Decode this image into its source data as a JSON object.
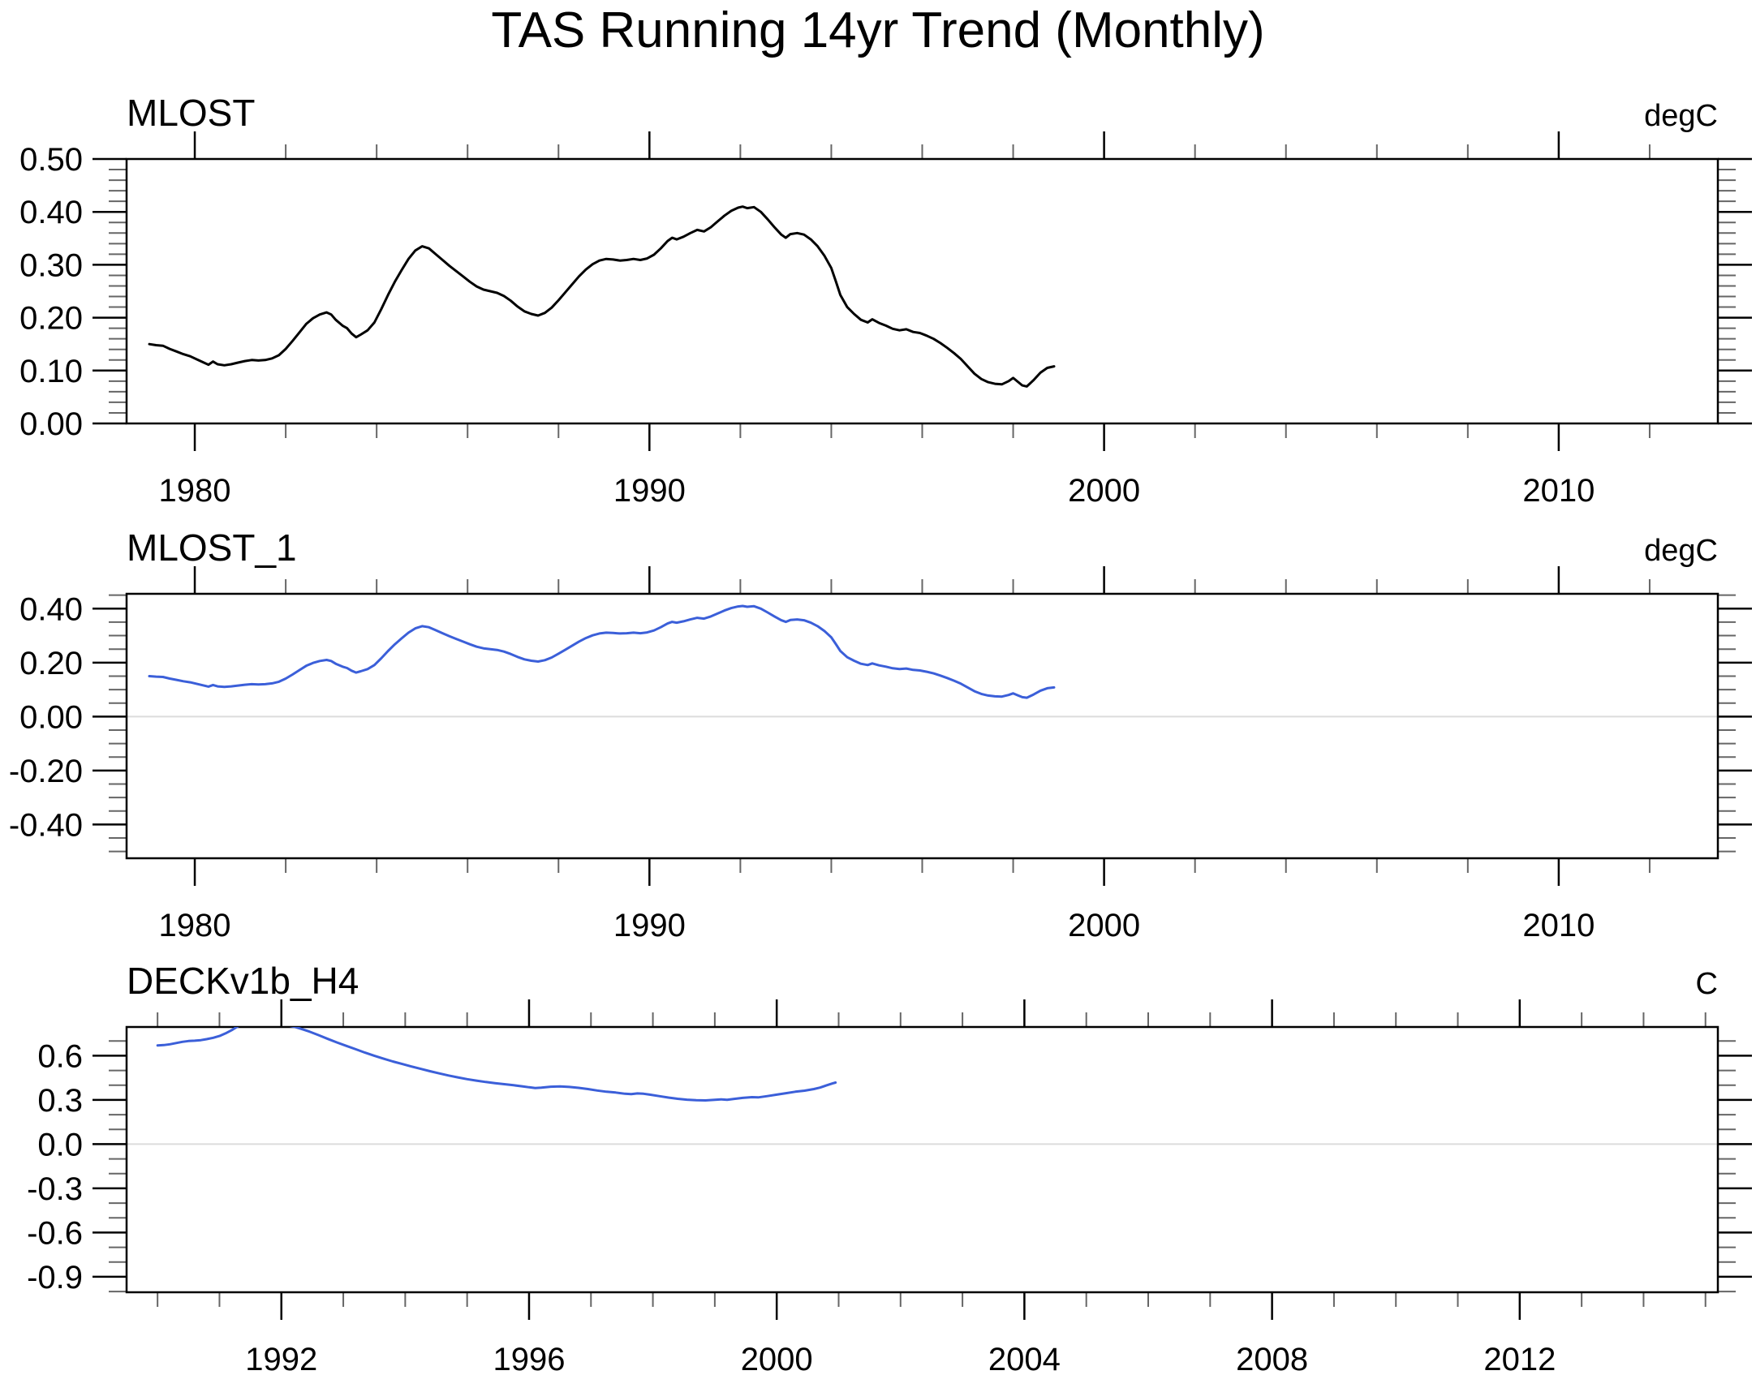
{
  "title": "TAS Running 14yr Trend (Monthly)",
  "colors": {
    "black_line": "#000000",
    "blue_line": "#3b5fd9",
    "zero_line": "#dcdcdc",
    "frame": "#000000",
    "minor_tick": "#666666"
  },
  "series": {
    "mlost_trend": [
      [
        1979.0,
        0.15
      ],
      [
        1979.15,
        0.148
      ],
      [
        1979.3,
        0.147
      ],
      [
        1979.45,
        0.141
      ],
      [
        1979.6,
        0.136
      ],
      [
        1979.75,
        0.131
      ],
      [
        1979.9,
        0.127
      ],
      [
        1980.05,
        0.121
      ],
      [
        1980.2,
        0.115
      ],
      [
        1980.3,
        0.111
      ],
      [
        1980.4,
        0.117
      ],
      [
        1980.5,
        0.112
      ],
      [
        1980.65,
        0.11
      ],
      [
        1980.8,
        0.112
      ],
      [
        1980.95,
        0.115
      ],
      [
        1981.1,
        0.118
      ],
      [
        1981.25,
        0.12
      ],
      [
        1981.4,
        0.119
      ],
      [
        1981.55,
        0.12
      ],
      [
        1981.7,
        0.123
      ],
      [
        1981.85,
        0.129
      ],
      [
        1982.0,
        0.141
      ],
      [
        1982.15,
        0.156
      ],
      [
        1982.3,
        0.172
      ],
      [
        1982.45,
        0.188
      ],
      [
        1982.6,
        0.199
      ],
      [
        1982.75,
        0.206
      ],
      [
        1982.9,
        0.21
      ],
      [
        1983.0,
        0.206
      ],
      [
        1983.1,
        0.196
      ],
      [
        1983.25,
        0.185
      ],
      [
        1983.35,
        0.18
      ],
      [
        1983.45,
        0.17
      ],
      [
        1983.55,
        0.163
      ],
      [
        1983.65,
        0.168
      ],
      [
        1983.8,
        0.176
      ],
      [
        1983.95,
        0.191
      ],
      [
        1984.1,
        0.216
      ],
      [
        1984.25,
        0.243
      ],
      [
        1984.4,
        0.268
      ],
      [
        1984.55,
        0.29
      ],
      [
        1984.7,
        0.311
      ],
      [
        1984.85,
        0.327
      ],
      [
        1985.0,
        0.335
      ],
      [
        1985.15,
        0.331
      ],
      [
        1985.3,
        0.32
      ],
      [
        1985.45,
        0.309
      ],
      [
        1985.6,
        0.298
      ],
      [
        1985.75,
        0.288
      ],
      [
        1985.9,
        0.278
      ],
      [
        1986.05,
        0.268
      ],
      [
        1986.2,
        0.259
      ],
      [
        1986.35,
        0.253
      ],
      [
        1986.5,
        0.25
      ],
      [
        1986.65,
        0.247
      ],
      [
        1986.8,
        0.241
      ],
      [
        1986.95,
        0.232
      ],
      [
        1987.1,
        0.221
      ],
      [
        1987.25,
        0.212
      ],
      [
        1987.4,
        0.207
      ],
      [
        1987.55,
        0.204
      ],
      [
        1987.7,
        0.209
      ],
      [
        1987.85,
        0.219
      ],
      [
        1988.0,
        0.233
      ],
      [
        1988.15,
        0.248
      ],
      [
        1988.3,
        0.263
      ],
      [
        1988.45,
        0.278
      ],
      [
        1988.6,
        0.291
      ],
      [
        1988.75,
        0.301
      ],
      [
        1988.9,
        0.308
      ],
      [
        1989.05,
        0.311
      ],
      [
        1989.2,
        0.31
      ],
      [
        1989.35,
        0.308
      ],
      [
        1989.5,
        0.309
      ],
      [
        1989.65,
        0.311
      ],
      [
        1989.8,
        0.309
      ],
      [
        1989.95,
        0.312
      ],
      [
        1990.1,
        0.319
      ],
      [
        1990.25,
        0.331
      ],
      [
        1990.4,
        0.345
      ],
      [
        1990.5,
        0.351
      ],
      [
        1990.6,
        0.348
      ],
      [
        1990.75,
        0.353
      ],
      [
        1990.9,
        0.36
      ],
      [
        1991.05,
        0.366
      ],
      [
        1991.2,
        0.363
      ],
      [
        1991.35,
        0.371
      ],
      [
        1991.5,
        0.382
      ],
      [
        1991.65,
        0.393
      ],
      [
        1991.8,
        0.402
      ],
      [
        1991.95,
        0.408
      ],
      [
        1992.05,
        0.41
      ],
      [
        1992.15,
        0.407
      ],
      [
        1992.3,
        0.409
      ],
      [
        1992.45,
        0.4
      ],
      [
        1992.6,
        0.386
      ],
      [
        1992.75,
        0.371
      ],
      [
        1992.9,
        0.357
      ],
      [
        1993.0,
        0.351
      ],
      [
        1993.1,
        0.358
      ],
      [
        1993.25,
        0.36
      ],
      [
        1993.4,
        0.357
      ],
      [
        1993.55,
        0.348
      ],
      [
        1993.7,
        0.335
      ],
      [
        1993.85,
        0.317
      ],
      [
        1994.0,
        0.294
      ],
      [
        1994.1,
        0.269
      ],
      [
        1994.2,
        0.243
      ],
      [
        1994.35,
        0.22
      ],
      [
        1994.5,
        0.207
      ],
      [
        1994.65,
        0.196
      ],
      [
        1994.8,
        0.191
      ],
      [
        1994.9,
        0.197
      ],
      [
        1995.05,
        0.19
      ],
      [
        1995.2,
        0.185
      ],
      [
        1995.35,
        0.179
      ],
      [
        1995.5,
        0.176
      ],
      [
        1995.65,
        0.178
      ],
      [
        1995.8,
        0.173
      ],
      [
        1995.95,
        0.171
      ],
      [
        1996.1,
        0.166
      ],
      [
        1996.25,
        0.16
      ],
      [
        1996.4,
        0.152
      ],
      [
        1996.55,
        0.143
      ],
      [
        1996.7,
        0.133
      ],
      [
        1996.85,
        0.122
      ],
      [
        1997.0,
        0.108
      ],
      [
        1997.15,
        0.094
      ],
      [
        1997.3,
        0.084
      ],
      [
        1997.45,
        0.078
      ],
      [
        1997.6,
        0.075
      ],
      [
        1997.75,
        0.074
      ],
      [
        1997.9,
        0.08
      ],
      [
        1998.0,
        0.086
      ],
      [
        1998.1,
        0.079
      ],
      [
        1998.2,
        0.072
      ],
      [
        1998.3,
        0.07
      ],
      [
        1998.45,
        0.082
      ],
      [
        1998.6,
        0.096
      ],
      [
        1998.75,
        0.105
      ],
      [
        1998.9,
        0.108
      ]
    ],
    "deckv1b_h4": [
      [
        1990.0,
        0.67
      ],
      [
        1990.1,
        0.672
      ],
      [
        1990.2,
        0.678
      ],
      [
        1990.3,
        0.686
      ],
      [
        1990.4,
        0.694
      ],
      [
        1990.5,
        0.7
      ],
      [
        1990.6,
        0.702
      ],
      [
        1990.7,
        0.706
      ],
      [
        1990.8,
        0.713
      ],
      [
        1990.9,
        0.722
      ],
      [
        1991.0,
        0.734
      ],
      [
        1991.1,
        0.752
      ],
      [
        1991.2,
        0.774
      ],
      [
        1991.3,
        0.8
      ],
      [
        1991.45,
        0.822
      ],
      [
        1991.6,
        0.835
      ],
      [
        1991.75,
        0.84
      ],
      [
        1991.9,
        0.832
      ],
      [
        1992.0,
        0.818
      ],
      [
        1992.1,
        0.806
      ],
      [
        1992.2,
        0.797
      ],
      [
        1992.3,
        0.785
      ],
      [
        1992.45,
        0.764
      ],
      [
        1992.6,
        0.74
      ],
      [
        1992.75,
        0.714
      ],
      [
        1992.9,
        0.69
      ],
      [
        1993.05,
        0.667
      ],
      [
        1993.2,
        0.644
      ],
      [
        1993.35,
        0.621
      ],
      [
        1993.5,
        0.6
      ],
      [
        1993.65,
        0.58
      ],
      [
        1993.8,
        0.561
      ],
      [
        1993.95,
        0.544
      ],
      [
        1994.1,
        0.527
      ],
      [
        1994.25,
        0.511
      ],
      [
        1994.4,
        0.495
      ],
      [
        1994.55,
        0.48
      ],
      [
        1994.7,
        0.466
      ],
      [
        1994.85,
        0.453
      ],
      [
        1995.0,
        0.441
      ],
      [
        1995.15,
        0.431
      ],
      [
        1995.3,
        0.422
      ],
      [
        1995.45,
        0.414
      ],
      [
        1995.6,
        0.407
      ],
      [
        1995.75,
        0.4
      ],
      [
        1995.9,
        0.392
      ],
      [
        1996.0,
        0.386
      ],
      [
        1996.1,
        0.381
      ],
      [
        1996.2,
        0.384
      ],
      [
        1996.35,
        0.39
      ],
      [
        1996.5,
        0.392
      ],
      [
        1996.65,
        0.388
      ],
      [
        1996.8,
        0.382
      ],
      [
        1996.95,
        0.374
      ],
      [
        1997.1,
        0.364
      ],
      [
        1997.25,
        0.356
      ],
      [
        1997.4,
        0.35
      ],
      [
        1997.55,
        0.342
      ],
      [
        1997.65,
        0.339
      ],
      [
        1997.75,
        0.344
      ],
      [
        1997.85,
        0.342
      ],
      [
        1997.95,
        0.336
      ],
      [
        1998.1,
        0.326
      ],
      [
        1998.25,
        0.316
      ],
      [
        1998.4,
        0.308
      ],
      [
        1998.55,
        0.302
      ],
      [
        1998.7,
        0.298
      ],
      [
        1998.85,
        0.297
      ],
      [
        1999.0,
        0.301
      ],
      [
        1999.1,
        0.304
      ],
      [
        1999.2,
        0.301
      ],
      [
        1999.3,
        0.307
      ],
      [
        1999.45,
        0.314
      ],
      [
        1999.6,
        0.319
      ],
      [
        1999.7,
        0.317
      ],
      [
        1999.85,
        0.326
      ],
      [
        2000.0,
        0.336
      ],
      [
        2000.15,
        0.346
      ],
      [
        2000.3,
        0.356
      ],
      [
        2000.45,
        0.363
      ],
      [
        2000.6,
        0.374
      ],
      [
        2000.7,
        0.384
      ],
      [
        2000.8,
        0.398
      ],
      [
        2000.9,
        0.412
      ],
      [
        2000.95,
        0.418
      ]
    ]
  },
  "chart_data": [
    {
      "type": "line",
      "title": "MLOST",
      "unit": "degC",
      "line_color": "#000000",
      "series_key": "mlost_trend",
      "x_range": [
        1978.5,
        2013.5
      ],
      "y_range": [
        0.0,
        0.5
      ],
      "x_major_ticks": [
        1980,
        1990,
        2000,
        2010
      ],
      "x_major_labels": [
        "1980",
        "1990",
        "2000",
        "2010"
      ],
      "x_minor_start": 1980,
      "x_minor_interval": 2,
      "y_major_ticks": [
        0.0,
        0.1,
        0.2,
        0.3,
        0.4,
        0.5
      ],
      "y_major_labels": [
        "0.00",
        "0.10",
        "0.20",
        "0.30",
        "0.40",
        "0.50"
      ],
      "y_minor_interval": 0.02,
      "zero_line": false,
      "grid": false,
      "legend": "none"
    },
    {
      "type": "line",
      "title": "MLOST_1",
      "unit": "degC",
      "line_color": "#3b5fd9",
      "series_key": "mlost_trend",
      "x_range": [
        1978.5,
        2013.5
      ],
      "y_range": [
        -0.525,
        0.455
      ],
      "x_major_ticks": [
        1980,
        1990,
        2000,
        2010
      ],
      "x_major_labels": [
        "1980",
        "1990",
        "2000",
        "2010"
      ],
      "x_minor_start": 1980,
      "x_minor_interval": 2,
      "y_major_ticks": [
        -0.4,
        -0.2,
        0.0,
        0.2,
        0.4
      ],
      "y_major_labels": [
        "-0.40",
        "-0.20",
        "0.00",
        "0.20",
        "0.40"
      ],
      "y_minor_interval": 0.05,
      "zero_line": true,
      "grid": false,
      "legend": "none"
    },
    {
      "type": "line",
      "title": "DECKv1b_H4",
      "unit": "C",
      "line_color": "#3b5fd9",
      "series_key": "deckv1b_h4",
      "x_range": [
        1989.5,
        2015.2
      ],
      "y_range": [
        -1.005,
        0.795
      ],
      "x_major_ticks": [
        1992,
        1996,
        2000,
        2004,
        2008,
        2012
      ],
      "x_major_labels": [
        "1992",
        "1996",
        "2000",
        "2004",
        "2008",
        "2012"
      ],
      "x_minor_start": 1990,
      "x_minor_interval": 1,
      "y_major_ticks": [
        -0.9,
        -0.6,
        -0.3,
        0.0,
        0.3,
        0.6
      ],
      "y_major_labels": [
        "-0.9",
        "-0.6",
        "-0.3",
        "0.0",
        "0.3",
        "0.6"
      ],
      "y_minor_interval": 0.1,
      "zero_line": true,
      "grid": false,
      "legend": "none"
    }
  ]
}
